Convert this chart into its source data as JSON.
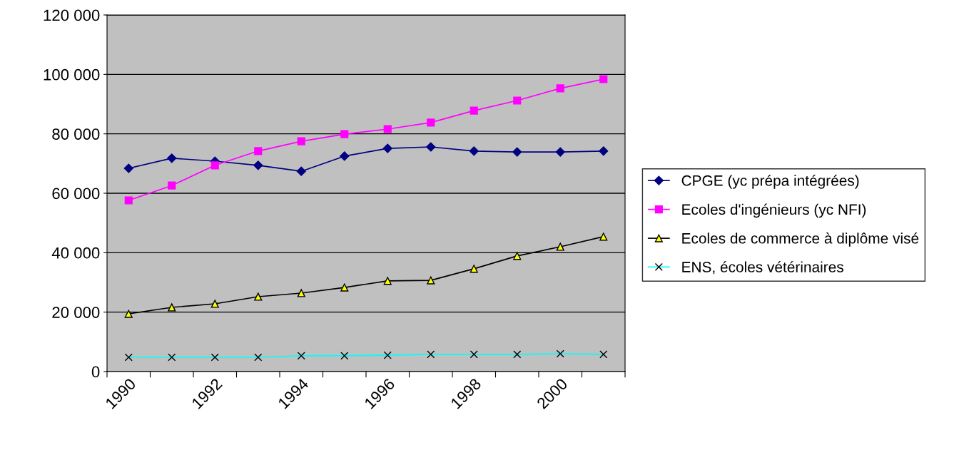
{
  "chart_data": {
    "type": "line",
    "categories": [
      "1990",
      null,
      "1992",
      null,
      "1994",
      null,
      "1996",
      null,
      "1998",
      null,
      "2000",
      null
    ],
    "series": [
      {
        "name": "CPGE (yc prépa intégrées)",
        "color": "#000080",
        "marker": "diamond",
        "values": [
          68400,
          71800,
          70800,
          69400,
          67400,
          72500,
          75100,
          75600,
          74200,
          73900,
          73900,
          74200
        ]
      },
      {
        "name": "Ecoles d'ingénieurs (yc NFI)",
        "color": "#ff00ff",
        "marker": "square",
        "values": [
          57600,
          62600,
          69400,
          74200,
          77500,
          79900,
          81600,
          83800,
          87800,
          91200,
          95300,
          98400
        ]
      },
      {
        "name": "Ecoles de commerce à diplôme visé",
        "color": "#000000",
        "marker": "triangle",
        "values": [
          19400,
          21600,
          22800,
          25200,
          26400,
          28300,
          30500,
          30700,
          34600,
          38900,
          42000,
          45400
        ]
      },
      {
        "name": "ENS, écoles vétérinaires",
        "color": "#00ffff",
        "marker": "cross",
        "values": [
          4800,
          4800,
          4800,
          4800,
          5300,
          5300,
          5500,
          5800,
          5800,
          5800,
          6000,
          5800
        ]
      }
    ],
    "ylim": [
      0,
      120000
    ],
    "yticks": [
      {
        "value": 0,
        "label": "0"
      },
      {
        "value": 20000,
        "label": "20 000"
      },
      {
        "value": 40000,
        "label": "40 000"
      },
      {
        "value": 60000,
        "label": "60 000"
      },
      {
        "value": 80000,
        "label": "80 000"
      },
      {
        "value": 100000,
        "label": "100 000"
      },
      {
        "value": 120000,
        "label": "120 000"
      }
    ],
    "grid": "y",
    "legend": "right"
  }
}
